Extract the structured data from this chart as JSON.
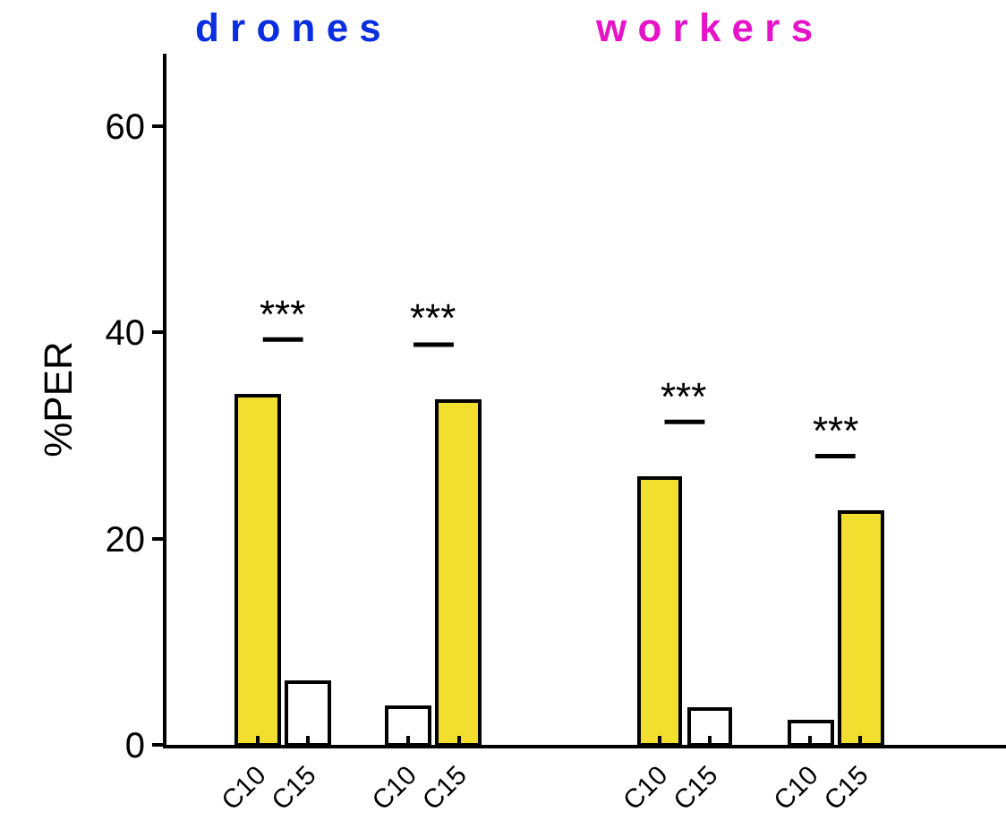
{
  "chart_data": {
    "type": "bar",
    "ylabel": "%PER",
    "categories": [
      "C10",
      "C15",
      null,
      "C10",
      "C15",
      null,
      null,
      null,
      "C10",
      "C15",
      null,
      "C10",
      "C15"
    ],
    "values": [
      33.8,
      6.1,
      null,
      3.6,
      33.3,
      null,
      null,
      null,
      25.8,
      3.5,
      null,
      2.3,
      22.5
    ],
    "colors": [
      "#f2de2f",
      "#ffffff",
      null,
      "#ffffff",
      "#f2de2f",
      null,
      null,
      null,
      "#f2de2f",
      "#ffffff",
      null,
      "#ffffff",
      "#f2de2f"
    ],
    "ylim": [
      0,
      67
    ],
    "yticks": [
      0,
      20,
      40,
      60
    ],
    "annotations": [
      "d r o n e s",
      "w o r k e r s",
      "***",
      "***",
      "***",
      "***"
    ]
  }
}
